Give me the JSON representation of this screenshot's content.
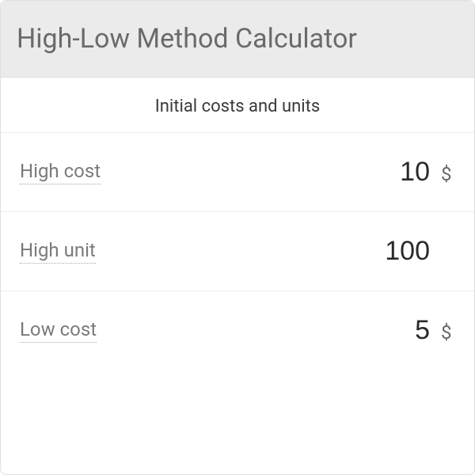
{
  "header": {
    "title": "High-Low Method Calculator"
  },
  "section": {
    "heading": "Initial costs and units"
  },
  "rows": [
    {
      "label": "High cost",
      "value": "10",
      "unit": "$",
      "has_unit": true
    },
    {
      "label": "High unit",
      "value": "100",
      "unit": "$",
      "has_unit": false
    },
    {
      "label": "Low cost",
      "value": "5",
      "unit": "$",
      "has_unit": true
    }
  ],
  "colors": {
    "header_bg": "#ebebeb",
    "header_text": "#6a6a6a",
    "border": "#e0e0e0",
    "row_border": "#ececec",
    "label_text": "#7a7a7a",
    "value_text": "#2a2a2a",
    "unit_text": "#6a6a6a",
    "section_heading": "#3a3a3a"
  },
  "typography": {
    "header_title_size": 34,
    "section_heading_size": 22,
    "label_size": 24,
    "value_size": 34,
    "unit_size": 24
  }
}
